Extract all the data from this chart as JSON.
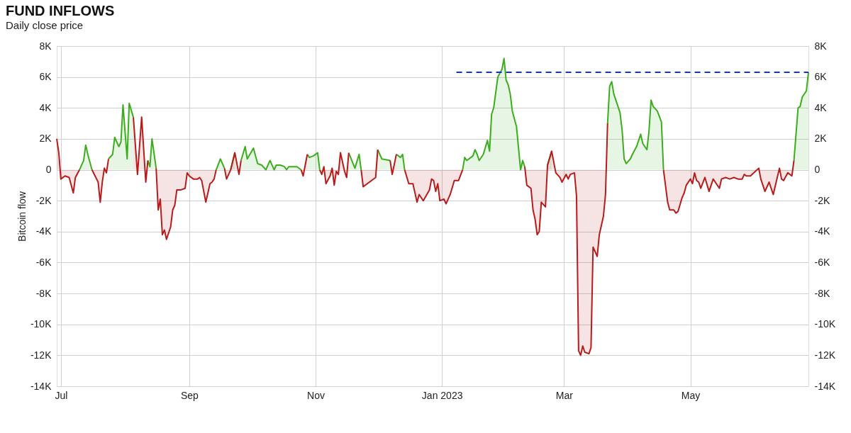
{
  "chart_data": {
    "type": "area",
    "title": "FUND INFLOWS",
    "subtitle": "Daily close price",
    "ylabel": "Bitcoin flow",
    "x": [
      "2022-06-29",
      "2022-06-30",
      "2022-07-01",
      "2022-07-03",
      "2022-07-05",
      "2022-07-07",
      "2022-07-08",
      "2022-07-10",
      "2022-07-12",
      "2022-07-13",
      "2022-07-14",
      "2022-07-16",
      "2022-07-19",
      "2022-07-20",
      "2022-07-21",
      "2022-07-22",
      "2022-07-23",
      "2022-07-24",
      "2022-07-26",
      "2022-07-27",
      "2022-07-29",
      "2022-07-30",
      "2022-07-31",
      "2022-08-02",
      "2022-08-03",
      "2022-08-05",
      "2022-08-07",
      "2022-08-09",
      "2022-08-11",
      "2022-08-12",
      "2022-08-13",
      "2022-08-14",
      "2022-08-16",
      "2022-08-17",
      "2022-08-18",
      "2022-08-19",
      "2022-08-20",
      "2022-08-21",
      "2022-08-23",
      "2022-08-24",
      "2022-08-25",
      "2022-08-26",
      "2022-08-28",
      "2022-08-30",
      "2022-08-31",
      "2022-09-01",
      "2022-09-03",
      "2022-09-05",
      "2022-09-06",
      "2022-09-07",
      "2022-09-09",
      "2022-09-11",
      "2022-09-12",
      "2022-09-13",
      "2022-09-14",
      "2022-09-16",
      "2022-09-18",
      "2022-09-19",
      "2022-09-21",
      "2022-09-23",
      "2022-09-25",
      "2022-09-26",
      "2022-09-28",
      "2022-09-29",
      "2022-10-02",
      "2022-10-04",
      "2022-10-06",
      "2022-10-08",
      "2022-10-10",
      "2022-10-12",
      "2022-10-13",
      "2022-10-15",
      "2022-10-17",
      "2022-10-18",
      "2022-10-19",
      "2022-10-21",
      "2022-10-23",
      "2022-10-25",
      "2022-10-26",
      "2022-10-28",
      "2022-10-29",
      "2022-10-31",
      "2022-11-02",
      "2022-11-03",
      "2022-11-04",
      "2022-11-05",
      "2022-11-06",
      "2022-11-08",
      "2022-11-09",
      "2022-11-10",
      "2022-11-11",
      "2022-11-12",
      "2022-11-13",
      "2022-11-15",
      "2022-11-16",
      "2022-11-17",
      "2022-11-20",
      "2022-11-22",
      "2022-11-23",
      "2022-11-24",
      "2022-11-28",
      "2022-11-30",
      "2022-12-01",
      "2022-12-03",
      "2022-12-07",
      "2022-12-08",
      "2022-12-10",
      "2022-12-12",
      "2022-12-13",
      "2022-12-14",
      "2022-12-16",
      "2022-12-18",
      "2022-12-20",
      "2022-12-21",
      "2022-12-23",
      "2022-12-26",
      "2022-12-27",
      "2022-12-28",
      "2022-12-29",
      "2022-12-30",
      "2022-12-31",
      "2023-01-02",
      "2023-01-03",
      "2023-01-05",
      "2023-01-07",
      "2023-01-09",
      "2023-01-11",
      "2023-01-12",
      "2023-01-13",
      "2023-01-15",
      "2023-01-16",
      "2023-01-17",
      "2023-01-18",
      "2023-01-19",
      "2023-01-21",
      "2023-01-23",
      "2023-01-24",
      "2023-01-25",
      "2023-01-26",
      "2023-01-28",
      "2023-01-30",
      "2023-01-31",
      "2023-02-01",
      "2023-02-02",
      "2023-02-03",
      "2023-02-04",
      "2023-02-06",
      "2023-02-08",
      "2023-02-09",
      "2023-02-10",
      "2023-02-11",
      "2023-02-13",
      "2023-02-14",
      "2023-02-15",
      "2023-02-16",
      "2023-02-17",
      "2023-02-18",
      "2023-02-20",
      "2023-02-21",
      "2023-02-23",
      "2023-02-25",
      "2023-02-27",
      "2023-02-28",
      "2023-03-02",
      "2023-03-03",
      "2023-03-04",
      "2023-03-06",
      "2023-03-07",
      "2023-03-08",
      "2023-03-09",
      "2023-03-10",
      "2023-03-11",
      "2023-03-13",
      "2023-03-14",
      "2023-03-15",
      "2023-03-17",
      "2023-03-18",
      "2023-03-20",
      "2023-03-21",
      "2023-03-22",
      "2023-03-23",
      "2023-03-24",
      "2023-03-25",
      "2023-03-27",
      "2023-03-28",
      "2023-03-29",
      "2023-03-30",
      "2023-03-31",
      "2023-04-02",
      "2023-04-03",
      "2023-04-05",
      "2023-04-07",
      "2023-04-08",
      "2023-04-10",
      "2023-04-11",
      "2023-04-12",
      "2023-04-13",
      "2023-04-15",
      "2023-04-17",
      "2023-04-18",
      "2023-04-20",
      "2023-04-21",
      "2023-04-23",
      "2023-04-24",
      "2023-04-25",
      "2023-04-27",
      "2023-04-28",
      "2023-04-29",
      "2023-05-01",
      "2023-05-02",
      "2023-05-03",
      "2023-05-04",
      "2023-05-05",
      "2023-05-06",
      "2023-05-08",
      "2023-05-10",
      "2023-05-12",
      "2023-05-15",
      "2023-05-16",
      "2023-05-18",
      "2023-05-20",
      "2023-05-22",
      "2023-05-24",
      "2023-05-26",
      "2023-05-27",
      "2023-05-28",
      "2023-05-30",
      "2023-06-03",
      "2023-06-04",
      "2023-06-06",
      "2023-06-08",
      "2023-06-10",
      "2023-06-13",
      "2023-06-14",
      "2023-06-15",
      "2023-06-17",
      "2023-06-19",
      "2023-06-20",
      "2023-06-22",
      "2023-06-23",
      "2023-06-24",
      "2023-06-26",
      "2023-06-27"
    ],
    "series": [
      {
        "color": "#3cae1e",
        "values": [
          null,
          null,
          null,
          null,
          null,
          null,
          null,
          0,
          600,
          1600,
          1000,
          0,
          null,
          null,
          null,
          null,
          null,
          700,
          1000,
          2100,
          1500,
          1800,
          4200,
          700,
          4300,
          3400,
          null,
          null,
          null,
          600,
          200,
          2000,
          100,
          null,
          null,
          null,
          null,
          null,
          null,
          null,
          null,
          null,
          null,
          null,
          null,
          null,
          null,
          null,
          null,
          null,
          null,
          null,
          null,
          null,
          0,
          700,
          100,
          null,
          0,
          1100,
          null,
          600,
          1500,
          700,
          1400,
          400,
          300,
          0,
          600,
          0,
          300,
          300,
          200,
          0,
          200,
          200,
          200,
          0,
          null,
          1000,
          800,
          900,
          1100,
          0,
          null,
          null,
          null,
          null,
          null,
          null,
          null,
          null,
          null,
          null,
          null,
          1100,
          100,
          1000,
          0,
          null,
          null,
          null,
          1300,
          700,
          600,
          null,
          1000,
          800,
          1000,
          0,
          null,
          null,
          null,
          null,
          null,
          null,
          null,
          null,
          null,
          null,
          null,
          null,
          null,
          null,
          null,
          null,
          0,
          800,
          600,
          800,
          900,
          1300,
          1000,
          600,
          1000,
          1900,
          1200,
          3600,
          4000,
          6000,
          6500,
          7200,
          5800,
          5500,
          4900,
          3800,
          2800,
          0,
          600,
          200,
          null,
          null,
          null,
          null,
          null,
          null,
          null,
          null,
          300,
          1200,
          null,
          null,
          null,
          null,
          null,
          null,
          null,
          null,
          null,
          null,
          null,
          null,
          null,
          null,
          null,
          null,
          null,
          null,
          null,
          3000,
          5400,
          5700,
          4900,
          4100,
          3700,
          2600,
          700,
          400,
          700,
          1000,
          1500,
          2300,
          1700,
          1300,
          2500,
          4500,
          4100,
          3800,
          3100,
          0,
          null,
          null,
          null,
          null,
          null,
          null,
          null,
          null,
          null,
          null,
          null,
          null,
          null,
          null,
          null,
          null,
          null,
          null,
          null,
          null,
          null,
          null,
          null,
          null,
          null,
          null,
          null,
          null,
          null,
          null,
          null,
          null,
          null,
          null,
          null,
          null,
          null,
          600,
          4000,
          4100,
          4700,
          5100,
          6300
        ]
      },
      {
        "color": "#b71c1c",
        "values": [
          2000,
          1100,
          -600,
          -400,
          -500,
          -1500,
          -500,
          0,
          null,
          null,
          null,
          0,
          -800,
          -2100,
          -800,
          100,
          -200,
          700,
          null,
          null,
          null,
          null,
          null,
          null,
          null,
          3400,
          -300,
          3400,
          -800,
          600,
          null,
          null,
          100,
          -2600,
          -1900,
          -4200,
          -3900,
          -4500,
          -3700,
          -2600,
          -2300,
          -1300,
          -1300,
          -1200,
          -200,
          -400,
          -600,
          -600,
          -500,
          -700,
          -2100,
          -900,
          -800,
          -600,
          0,
          null,
          100,
          -600,
          0,
          1100,
          -300,
          600,
          null,
          null,
          null,
          null,
          null,
          null,
          null,
          null,
          null,
          null,
          null,
          null,
          null,
          null,
          null,
          0,
          -400,
          1000,
          null,
          null,
          null,
          0,
          -300,
          200,
          -900,
          -400,
          100,
          -1000,
          -100,
          -300,
          1100,
          -100,
          -500,
          1100,
          null,
          null,
          0,
          -1100,
          -700,
          -500,
          1300,
          null,
          600,
          -300,
          1000,
          null,
          null,
          0,
          -900,
          -900,
          -2100,
          -1600,
          -2000,
          -1300,
          -600,
          -700,
          -1400,
          -900,
          -2000,
          -1900,
          -2200,
          -1600,
          -700,
          -700,
          0,
          null,
          null,
          null,
          null,
          null,
          null,
          null,
          null,
          null,
          null,
          null,
          null,
          null,
          null,
          null,
          null,
          null,
          null,
          null,
          null,
          null,
          null,
          200,
          -1000,
          -1200,
          -2600,
          -3200,
          -4200,
          -4000,
          -2100,
          -2400,
          300,
          1200,
          -200,
          -500,
          -800,
          -300,
          -600,
          -300,
          -200,
          -1700,
          -11700,
          -12000,
          -11400,
          -11800,
          -11900,
          -11500,
          -5000,
          -5600,
          -4200,
          -3000,
          -1600,
          3000,
          null,
          null,
          null,
          null,
          null,
          null,
          null,
          null,
          null,
          null,
          null,
          null,
          null,
          null,
          null,
          null,
          null,
          null,
          null,
          0,
          -2100,
          -2600,
          -2600,
          -2800,
          -2700,
          -1800,
          -1500,
          -1000,
          -600,
          -900,
          -200,
          -700,
          -800,
          -1200,
          -500,
          -1400,
          -600,
          -1200,
          -600,
          -500,
          -600,
          -500,
          -600,
          -600,
          -300,
          -400,
          -400,
          100,
          -600,
          -1400,
          -800,
          -1600,
          100,
          -600,
          -700,
          -200,
          -400,
          600,
          null,
          null,
          null,
          null,
          null
        ]
      },
      {
        "type": "line",
        "line_style": "dashed",
        "color": "#1530d8",
        "x": [
          "2023-01-08",
          "2023-06-27"
        ],
        "values": [
          6300,
          6300
        ]
      }
    ],
    "xlim": [
      "2022-06-29",
      "2023-06-27"
    ],
    "xticks": [
      {
        "value": "2022-07-01",
        "label": "Jul"
      },
      {
        "value": "2022-09-01",
        "label": "Sep"
      },
      {
        "value": "2022-11-01",
        "label": "Nov"
      },
      {
        "value": "2023-01-01",
        "label": "Jan 2023"
      },
      {
        "value": "2023-03-01",
        "label": "Mar"
      },
      {
        "value": "2023-05-01",
        "label": "May"
      }
    ],
    "ylim": [
      -14000,
      8000
    ],
    "yticks": [
      {
        "value": -14000,
        "label": "-14K"
      },
      {
        "value": -12000,
        "label": "-12K"
      },
      {
        "value": -10000,
        "label": "-10K"
      },
      {
        "value": -8000,
        "label": "-8K"
      },
      {
        "value": -6000,
        "label": "-6K"
      },
      {
        "value": -4000,
        "label": "-4K"
      },
      {
        "value": -2000,
        "label": "-2K"
      },
      {
        "value": 0,
        "label": "0"
      },
      {
        "value": 2000,
        "label": "2K"
      },
      {
        "value": 4000,
        "label": "4K"
      },
      {
        "value": 6000,
        "label": "6K"
      },
      {
        "value": 8000,
        "label": "8K"
      }
    ],
    "y2lim": [
      -14000,
      8000
    ],
    "y2ticks": [
      {
        "value": -14000,
        "label": "-14K"
      },
      {
        "value": -12000,
        "label": "-12K"
      },
      {
        "value": -10000,
        "label": "-10K"
      },
      {
        "value": -8000,
        "label": "-8K"
      },
      {
        "value": -6000,
        "label": "-6K"
      },
      {
        "value": -4000,
        "label": "-4K"
      },
      {
        "value": -2000,
        "label": "-2K"
      },
      {
        "value": 0,
        "label": "0"
      },
      {
        "value": 2000,
        "label": "2K"
      },
      {
        "value": 4000,
        "label": "4K"
      },
      {
        "value": 6000,
        "label": "6K"
      },
      {
        "value": 8000,
        "label": "8K"
      }
    ],
    "grid": true
  }
}
